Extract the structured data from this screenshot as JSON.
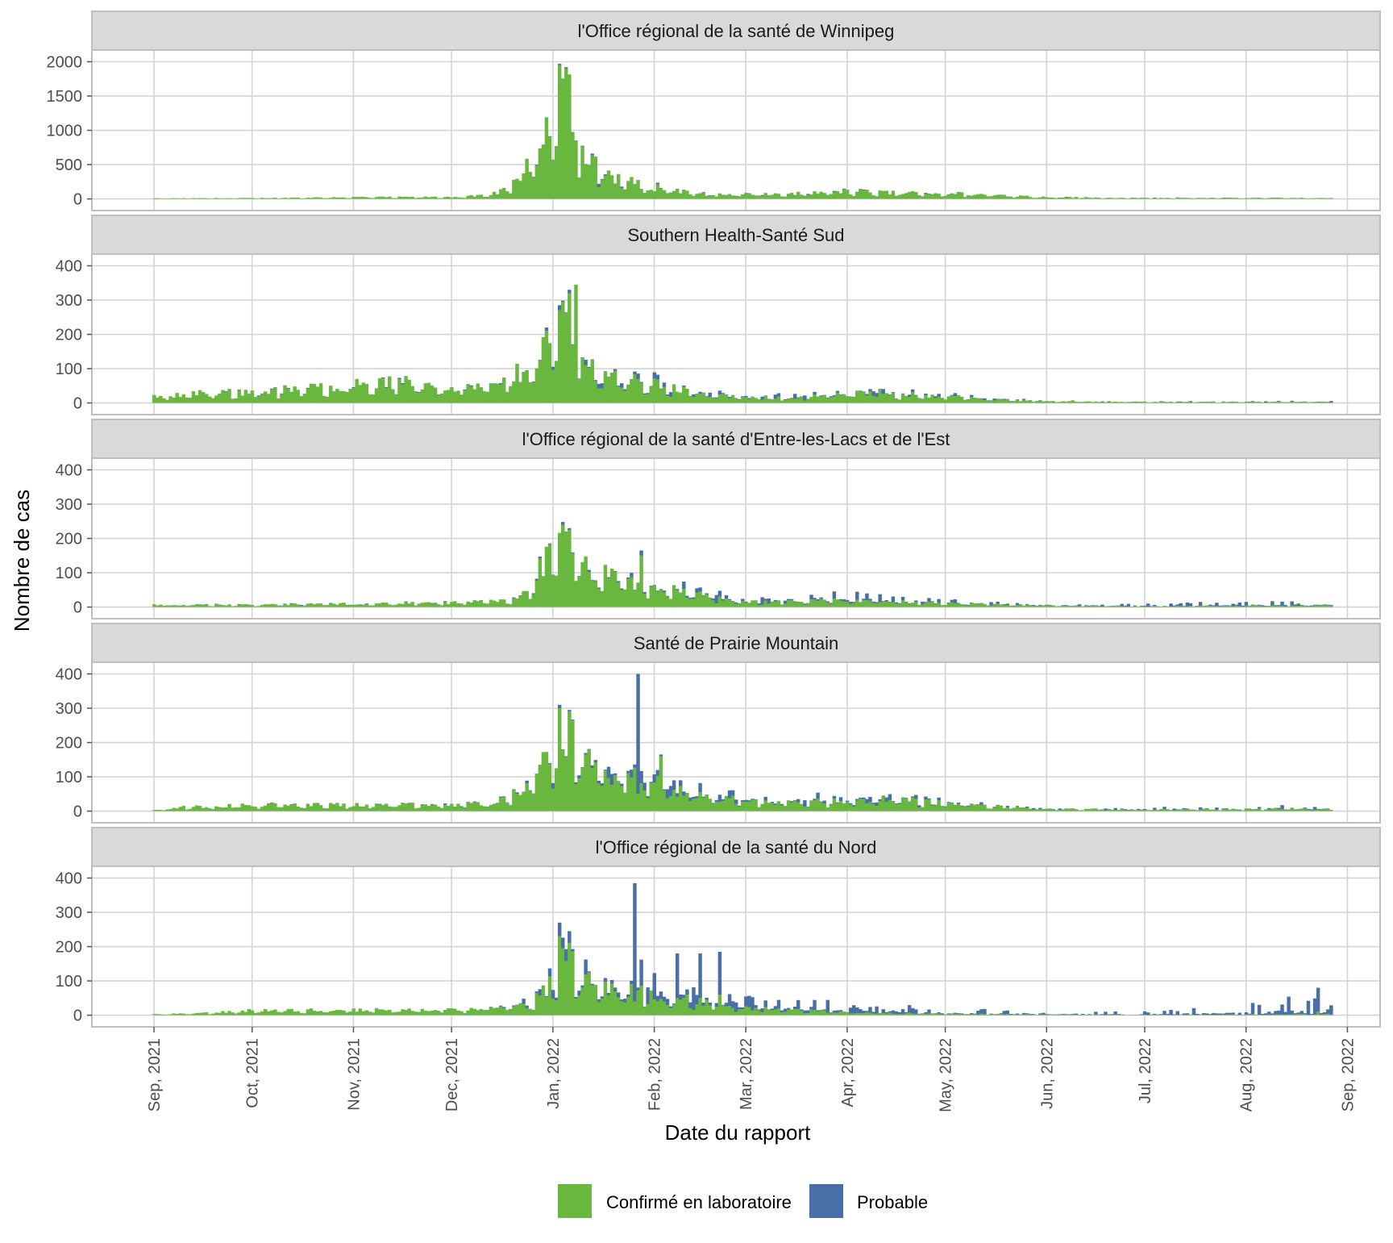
{
  "chart_data": {
    "type": "bar",
    "stacked": true,
    "xlabel": "Date du rapport",
    "ylabel": "Nombre de cas",
    "x_start": "2021-09-01",
    "x_end": "2022-08-27",
    "xlim": [
      "2021-08-13",
      "2022-09-11"
    ],
    "x_ticks": [
      {
        "date": "2021-09-01",
        "label": "Sep, 2021"
      },
      {
        "date": "2021-10-01",
        "label": "Oct, 2021"
      },
      {
        "date": "2021-11-01",
        "label": "Nov, 2021"
      },
      {
        "date": "2021-12-01",
        "label": "Dec, 2021"
      },
      {
        "date": "2022-01-01",
        "label": "Jan, 2022"
      },
      {
        "date": "2022-02-01",
        "label": "Feb, 2022"
      },
      {
        "date": "2022-03-01",
        "label": "Mar, 2022"
      },
      {
        "date": "2022-04-01",
        "label": "Apr, 2022"
      },
      {
        "date": "2022-05-01",
        "label": "May, 2022"
      },
      {
        "date": "2022-06-01",
        "label": "Jun, 2022"
      },
      {
        "date": "2022-07-01",
        "label": "Jul, 2022"
      },
      {
        "date": "2022-08-01",
        "label": "Aug, 2022"
      },
      {
        "date": "2022-09-01",
        "label": "Sep, 2022"
      }
    ],
    "legend": {
      "position": "bottom",
      "items": [
        {
          "label": "Confirmé en laboratoire",
          "color": "#6ab740"
        },
        {
          "label": "Probable",
          "color": "#4a6ea8"
        }
      ]
    },
    "grid": true,
    "panels": [
      {
        "title": "l'Office régional de la santé de Winnipeg",
        "ylim": [
          0,
          2100
        ],
        "yticks": [
          0,
          500,
          1000,
          1500,
          2000
        ],
        "anchors_confirmed": [
          [
            "2021-09-01",
            8
          ],
          [
            "2021-10-01",
            12
          ],
          [
            "2021-11-01",
            25
          ],
          [
            "2021-12-01",
            28
          ],
          [
            "2021-12-12",
            50
          ],
          [
            "2021-12-18",
            150
          ],
          [
            "2021-12-24",
            450
          ],
          [
            "2021-12-28",
            780
          ],
          [
            "2022-01-01",
            1450
          ],
          [
            "2022-01-03",
            1850
          ],
          [
            "2022-01-05",
            1700
          ],
          [
            "2022-01-08",
            1350
          ],
          [
            "2022-01-09",
            700
          ],
          [
            "2022-01-12",
            520
          ],
          [
            "2022-01-20",
            320
          ],
          [
            "2022-01-28",
            190
          ],
          [
            "2022-02-05",
            150
          ],
          [
            "2022-02-15",
            70
          ],
          [
            "2022-03-01",
            60
          ],
          [
            "2022-03-15",
            70
          ],
          [
            "2022-04-01",
            110
          ],
          [
            "2022-04-15",
            90
          ],
          [
            "2022-05-01",
            80
          ],
          [
            "2022-05-15",
            60
          ],
          [
            "2022-06-01",
            25
          ],
          [
            "2022-07-01",
            12
          ],
          [
            "2022-08-01",
            15
          ],
          [
            "2022-08-27",
            12
          ]
        ],
        "anchors_probable": [
          [
            "2021-09-01",
            0
          ],
          [
            "2021-12-20",
            0
          ],
          [
            "2022-01-01",
            15
          ],
          [
            "2022-01-15",
            25
          ],
          [
            "2022-02-01",
            12
          ],
          [
            "2022-03-01",
            8
          ],
          [
            "2022-05-01",
            5
          ],
          [
            "2022-08-27",
            2
          ]
        ],
        "spikes": [
          {
            "date": "2022-01-03",
            "confirmed": 1950,
            "probable": 20
          },
          {
            "date": "2022-01-05",
            "confirmed": 1900,
            "probable": 20
          }
        ]
      },
      {
        "title": "Southern Health-Santé Sud",
        "ylim": [
          0,
          420
        ],
        "yticks": [
          0,
          100,
          200,
          300,
          400
        ],
        "anchors_confirmed": [
          [
            "2021-09-01",
            18
          ],
          [
            "2021-09-15",
            30
          ],
          [
            "2021-10-01",
            32
          ],
          [
            "2021-10-15",
            40
          ],
          [
            "2021-11-01",
            55
          ],
          [
            "2021-11-15",
            60
          ],
          [
            "2021-12-01",
            48
          ],
          [
            "2021-12-15",
            50
          ],
          [
            "2021-12-22",
            90
          ],
          [
            "2021-12-28",
            150
          ],
          [
            "2022-01-01",
            180
          ],
          [
            "2022-01-04",
            240
          ],
          [
            "2022-01-08",
            140
          ],
          [
            "2022-01-15",
            90
          ],
          [
            "2022-01-25",
            65
          ],
          [
            "2022-02-05",
            50
          ],
          [
            "2022-02-15",
            25
          ],
          [
            "2022-03-01",
            15
          ],
          [
            "2022-03-15",
            15
          ],
          [
            "2022-04-01",
            25
          ],
          [
            "2022-04-10",
            30
          ],
          [
            "2022-04-20",
            25
          ],
          [
            "2022-05-01",
            20
          ],
          [
            "2022-05-15",
            10
          ],
          [
            "2022-06-01",
            5
          ],
          [
            "2022-07-01",
            3
          ],
          [
            "2022-08-01",
            3
          ],
          [
            "2022-08-27",
            3
          ]
        ],
        "anchors_probable": [
          [
            "2021-09-01",
            1
          ],
          [
            "2021-12-20",
            2
          ],
          [
            "2022-01-01",
            6
          ],
          [
            "2022-01-20",
            10
          ],
          [
            "2022-02-15",
            6
          ],
          [
            "2022-04-01",
            8
          ],
          [
            "2022-05-01",
            5
          ],
          [
            "2022-06-01",
            1
          ],
          [
            "2022-08-27",
            2
          ]
        ],
        "spikes": [
          {
            "date": "2021-12-30",
            "confirmed": 210,
            "probable": 10
          },
          {
            "date": "2022-01-03",
            "confirmed": 270,
            "probable": 15
          },
          {
            "date": "2022-01-06",
            "confirmed": 320,
            "probable": 10
          },
          {
            "date": "2022-01-08",
            "confirmed": 345,
            "probable": 0
          }
        ]
      },
      {
        "title": "l'Office régional de la santé d'Entre-les-Lacs et de l'Est",
        "ylim": [
          0,
          420
        ],
        "yticks": [
          0,
          100,
          200,
          300,
          400
        ],
        "anchors_confirmed": [
          [
            "2021-09-01",
            6
          ],
          [
            "2021-10-01",
            6
          ],
          [
            "2021-11-01",
            10
          ],
          [
            "2021-12-01",
            12
          ],
          [
            "2021-12-20",
            20
          ],
          [
            "2021-12-25",
            60
          ],
          [
            "2021-12-30",
            140
          ],
          [
            "2022-01-05",
            180
          ],
          [
            "2022-01-10",
            120
          ],
          [
            "2022-01-20",
            80
          ],
          [
            "2022-02-01",
            55
          ],
          [
            "2022-02-15",
            35
          ],
          [
            "2022-03-01",
            15
          ],
          [
            "2022-03-15",
            15
          ],
          [
            "2022-04-01",
            20
          ],
          [
            "2022-04-15",
            15
          ],
          [
            "2022-05-01",
            12
          ],
          [
            "2022-05-15",
            8
          ],
          [
            "2022-06-01",
            4
          ],
          [
            "2022-07-01",
            2
          ],
          [
            "2022-08-01",
            4
          ],
          [
            "2022-08-27",
            5
          ]
        ],
        "anchors_probable": [
          [
            "2021-09-01",
            1
          ],
          [
            "2021-12-15",
            1
          ],
          [
            "2022-01-01",
            5
          ],
          [
            "2022-01-25",
            10
          ],
          [
            "2022-02-15",
            12
          ],
          [
            "2022-03-15",
            10
          ],
          [
            "2022-04-10",
            15
          ],
          [
            "2022-05-01",
            6
          ],
          [
            "2022-06-01",
            3
          ],
          [
            "2022-08-01",
            6
          ],
          [
            "2022-08-27",
            6
          ]
        ],
        "spikes": [
          {
            "date": "2022-01-04",
            "confirmed": 240,
            "probable": 8
          },
          {
            "date": "2022-01-06",
            "confirmed": 225,
            "probable": 5
          },
          {
            "date": "2022-01-28",
            "confirmed": 150,
            "probable": 15
          }
        ]
      },
      {
        "title": "Santé de Prairie Mountain",
        "ylim": [
          0,
          420
        ],
        "yticks": [
          0,
          100,
          200,
          300,
          400
        ],
        "anchors_confirmed": [
          [
            "2021-09-01",
            3
          ],
          [
            "2021-09-10",
            12
          ],
          [
            "2021-10-01",
            18
          ],
          [
            "2021-11-01",
            18
          ],
          [
            "2021-12-01",
            18
          ],
          [
            "2021-12-15",
            25
          ],
          [
            "2021-12-25",
            80
          ],
          [
            "2022-01-01",
            170
          ],
          [
            "2022-01-05",
            230
          ],
          [
            "2022-01-10",
            150
          ],
          [
            "2022-01-20",
            110
          ],
          [
            "2022-02-01",
            80
          ],
          [
            "2022-02-15",
            45
          ],
          [
            "2022-03-01",
            30
          ],
          [
            "2022-03-15",
            25
          ],
          [
            "2022-04-01",
            30
          ],
          [
            "2022-04-15",
            35
          ],
          [
            "2022-05-01",
            22
          ],
          [
            "2022-05-15",
            15
          ],
          [
            "2022-06-01",
            6
          ],
          [
            "2022-07-01",
            4
          ],
          [
            "2022-08-01",
            6
          ],
          [
            "2022-08-27",
            6
          ]
        ],
        "anchors_probable": [
          [
            "2021-09-01",
            0
          ],
          [
            "2021-12-20",
            2
          ],
          [
            "2022-01-05",
            10
          ],
          [
            "2022-01-20",
            25
          ],
          [
            "2022-02-01",
            15
          ],
          [
            "2022-03-01",
            10
          ],
          [
            "2022-04-10",
            10
          ],
          [
            "2022-05-01",
            5
          ],
          [
            "2022-06-01",
            2
          ],
          [
            "2022-08-01",
            4
          ],
          [
            "2022-08-27",
            8
          ]
        ],
        "spikes": [
          {
            "date": "2022-01-03",
            "confirmed": 300,
            "probable": 10
          },
          {
            "date": "2022-01-06",
            "confirmed": 290,
            "probable": 5
          },
          {
            "date": "2022-01-27",
            "confirmed": 50,
            "probable": 350
          },
          {
            "date": "2022-02-03",
            "confirmed": 160,
            "probable": 5
          }
        ]
      },
      {
        "title": "l'Office régional de la santé du Nord",
        "ylim": [
          0,
          420
        ],
        "yticks": [
          0,
          100,
          200,
          300,
          400
        ],
        "anchors_confirmed": [
          [
            "2021-09-01",
            3
          ],
          [
            "2021-09-15",
            6
          ],
          [
            "2021-10-01",
            14
          ],
          [
            "2021-11-01",
            15
          ],
          [
            "2021-12-01",
            15
          ],
          [
            "2021-12-15",
            20
          ],
          [
            "2021-12-25",
            30
          ],
          [
            "2022-01-01",
            100
          ],
          [
            "2022-01-05",
            170
          ],
          [
            "2022-01-10",
            100
          ],
          [
            "2022-01-20",
            80
          ],
          [
            "2022-02-01",
            55
          ],
          [
            "2022-02-15",
            40
          ],
          [
            "2022-03-01",
            22
          ],
          [
            "2022-03-15",
            15
          ],
          [
            "2022-04-01",
            8
          ],
          [
            "2022-04-15",
            6
          ],
          [
            "2022-05-01",
            4
          ],
          [
            "2022-06-01",
            2
          ],
          [
            "2022-07-01",
            1
          ],
          [
            "2022-08-01",
            2
          ],
          [
            "2022-08-27",
            3
          ]
        ],
        "anchors_probable": [
          [
            "2021-09-01",
            0
          ],
          [
            "2021-12-15",
            1
          ],
          [
            "2022-01-01",
            15
          ],
          [
            "2022-01-20",
            30
          ],
          [
            "2022-02-05",
            40
          ],
          [
            "2022-03-01",
            25
          ],
          [
            "2022-04-01",
            15
          ],
          [
            "2022-05-01",
            8
          ],
          [
            "2022-06-01",
            5
          ],
          [
            "2022-07-01",
            5
          ],
          [
            "2022-08-01",
            15
          ],
          [
            "2022-08-20",
            30
          ],
          [
            "2022-08-27",
            30
          ]
        ],
        "spikes": [
          {
            "date": "2022-01-03",
            "confirmed": 230,
            "probable": 40
          },
          {
            "date": "2022-01-06",
            "confirmed": 210,
            "probable": 35
          },
          {
            "date": "2022-01-26",
            "confirmed": 40,
            "probable": 345
          },
          {
            "date": "2022-02-08",
            "confirmed": 50,
            "probable": 130
          },
          {
            "date": "2022-02-15",
            "confirmed": 50,
            "probable": 130
          },
          {
            "date": "2022-02-21",
            "confirmed": 60,
            "probable": 125
          },
          {
            "date": "2022-08-23",
            "confirmed": 10,
            "probable": 70
          }
        ]
      }
    ]
  }
}
